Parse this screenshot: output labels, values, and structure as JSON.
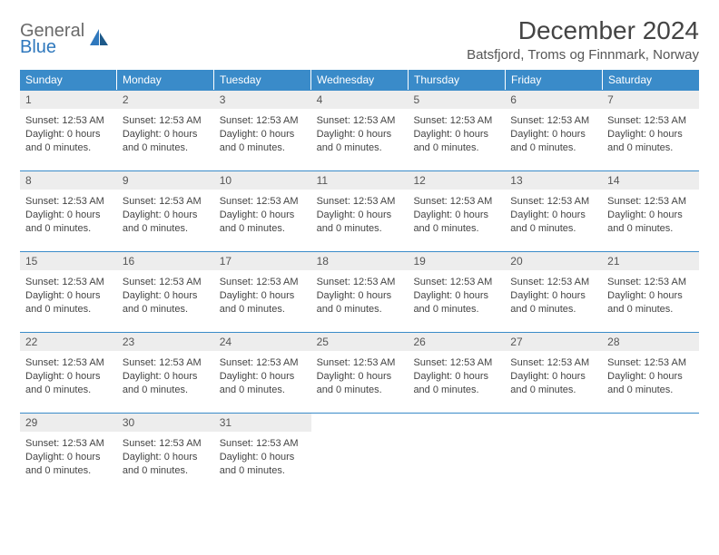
{
  "logo": {
    "line1": "General",
    "line2": "Blue"
  },
  "title": "December 2024",
  "location": "Batsfjord, Troms og Finnmark, Norway",
  "colors": {
    "header_bg": "#3a8bc9",
    "header_text": "#ffffff",
    "daynum_bg": "#ededed",
    "week_border": "#3a8bc9",
    "logo_gray": "#6a6a6a",
    "logo_blue": "#2f78bd"
  },
  "weekdays": [
    "Sunday",
    "Monday",
    "Tuesday",
    "Wednesday",
    "Thursday",
    "Friday",
    "Saturday"
  ],
  "cell_template": {
    "sunset_label": "Sunset:",
    "sunset_value": "12:53 AM",
    "daylight_label": "Daylight:",
    "daylight_value": "0 hours and 0 minutes."
  },
  "weeks": [
    [
      1,
      2,
      3,
      4,
      5,
      6,
      7
    ],
    [
      8,
      9,
      10,
      11,
      12,
      13,
      14
    ],
    [
      15,
      16,
      17,
      18,
      19,
      20,
      21
    ],
    [
      22,
      23,
      24,
      25,
      26,
      27,
      28
    ],
    [
      29,
      30,
      31,
      null,
      null,
      null,
      null
    ]
  ]
}
